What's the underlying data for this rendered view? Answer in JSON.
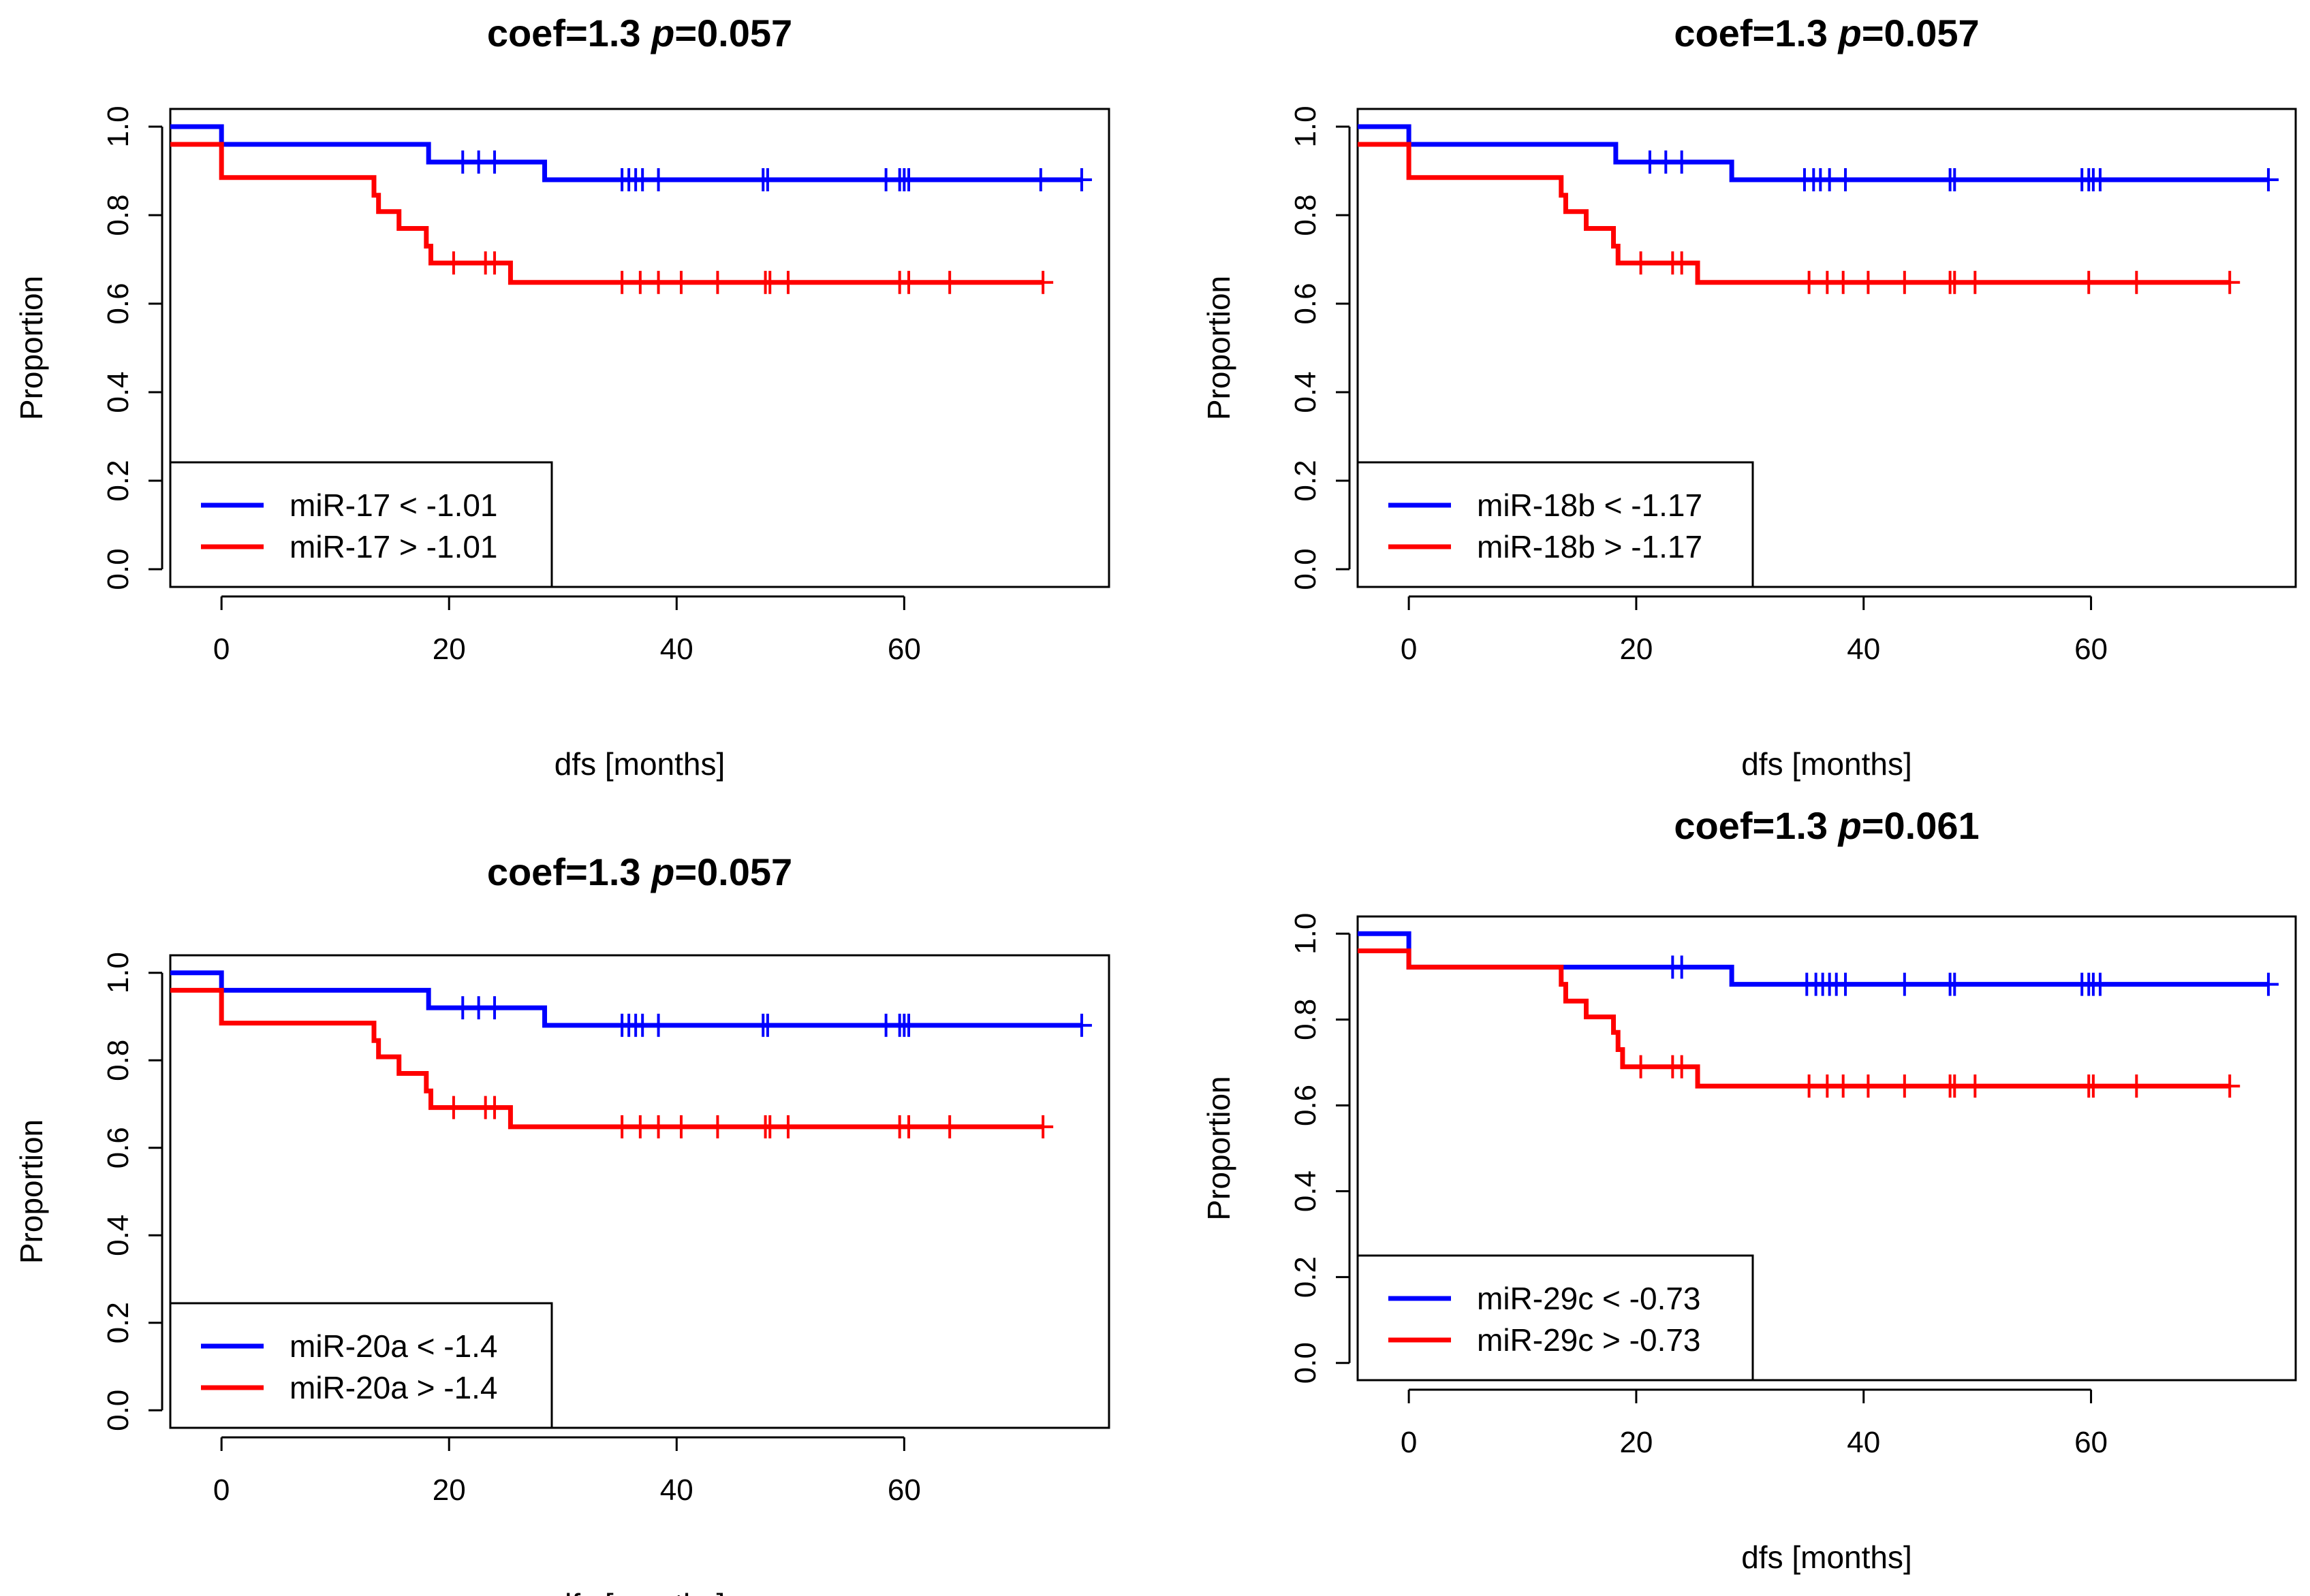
{
  "chart_data": [
    {
      "type": "line",
      "subtype": "kaplan-meier",
      "title": {
        "coef": "coef=1.3",
        "p_label": "p",
        "p_value": "=0.057"
      },
      "xlabel": "dfs [months]",
      "ylabel": "Proportion",
      "xlim": [
        -4.5,
        78
      ],
      "ylim": [
        -0.04,
        1.04
      ],
      "x_ticks": [
        "0",
        "20",
        "40",
        "60"
      ],
      "y_ticks": [
        "0.0",
        "0.2",
        "0.4",
        "0.6",
        "0.8",
        "1.0"
      ],
      "legend_position": "bottom-left",
      "series": [
        {
          "name": "miR-17 < -1.01",
          "color": "#0000FF",
          "steps": [
            [
              -4.5,
              1.0
            ],
            [
              0,
              0.96
            ],
            [
              18.2,
              0.92
            ],
            [
              28.4,
              0.88
            ],
            [
              75.6,
              0.88
            ]
          ],
          "censor_times": [
            21.2,
            22.6,
            24.0,
            35.2,
            35.8,
            36.4,
            37.0,
            38.4,
            47.6,
            48.0,
            58.4,
            59.6,
            60.0,
            60.4,
            72.0,
            75.6
          ]
        },
        {
          "name": "miR-17 > -1.01",
          "color": "#FF0000",
          "steps": [
            [
              -4.5,
              0.96
            ],
            [
              0,
              0.885
            ],
            [
              13.4,
              0.845
            ],
            [
              13.8,
              0.808
            ],
            [
              15.6,
              0.77
            ],
            [
              18.0,
              0.73
            ],
            [
              18.4,
              0.692
            ],
            [
              25.4,
              0.648
            ],
            [
              72.2,
              0.648
            ]
          ],
          "censor_times": [
            20.4,
            23.2,
            24.0,
            35.2,
            36.8,
            38.4,
            40.4,
            43.6,
            47.8,
            48.2,
            49.8,
            59.6,
            60.4,
            64.0,
            72.2
          ]
        }
      ]
    },
    {
      "type": "line",
      "subtype": "kaplan-meier",
      "title": {
        "coef": "coef=1.3",
        "p_label": "p",
        "p_value": "=0.057"
      },
      "xlabel": "dfs [months]",
      "ylabel": "Proportion",
      "xlim": [
        -4.5,
        78
      ],
      "ylim": [
        -0.04,
        1.04
      ],
      "x_ticks": [
        "0",
        "20",
        "40",
        "60"
      ],
      "y_ticks": [
        "0.0",
        "0.2",
        "0.4",
        "0.6",
        "0.8",
        "1.0"
      ],
      "legend_position": "bottom-left",
      "series": [
        {
          "name": "miR-18b < -1.17",
          "color": "#0000FF",
          "steps": [
            [
              -4.5,
              1.0
            ],
            [
              0,
              0.96
            ],
            [
              18.2,
              0.92
            ],
            [
              28.4,
              0.88
            ],
            [
              75.6,
              0.88
            ]
          ],
          "censor_times": [
            21.2,
            22.6,
            24.0,
            34.8,
            35.6,
            36.2,
            37.0,
            38.4,
            47.6,
            48.0,
            59.2,
            59.8,
            60.2,
            60.8,
            75.6
          ]
        },
        {
          "name": "miR-18b > -1.17",
          "color": "#FF0000",
          "steps": [
            [
              -4.5,
              0.96
            ],
            [
              0,
              0.885
            ],
            [
              13.4,
              0.845
            ],
            [
              13.8,
              0.808
            ],
            [
              15.6,
              0.77
            ],
            [
              18.0,
              0.73
            ],
            [
              18.4,
              0.692
            ],
            [
              25.4,
              0.648
            ],
            [
              72.2,
              0.648
            ]
          ],
          "censor_times": [
            20.4,
            23.2,
            24.0,
            35.2,
            36.8,
            38.2,
            40.4,
            43.6,
            47.6,
            48.0,
            49.8,
            59.8,
            64.0,
            72.2
          ]
        }
      ]
    },
    {
      "type": "line",
      "subtype": "kaplan-meier",
      "title": {
        "coef": "coef=1.3",
        "p_label": "p",
        "p_value": "=0.057"
      },
      "xlabel": "dfs [months]",
      "ylabel": "Proportion",
      "xlim": [
        -4.5,
        78
      ],
      "ylim": [
        -0.04,
        1.04
      ],
      "x_ticks": [
        "0",
        "20",
        "40",
        "60"
      ],
      "y_ticks": [
        "0.0",
        "0.2",
        "0.4",
        "0.6",
        "0.8",
        "1.0"
      ],
      "legend_position": "bottom-left",
      "series": [
        {
          "name": "miR-20a < -1.4",
          "color": "#0000FF",
          "steps": [
            [
              -4.5,
              1.0
            ],
            [
              0,
              0.96
            ],
            [
              18.2,
              0.92
            ],
            [
              28.4,
              0.88
            ],
            [
              75.6,
              0.88
            ]
          ],
          "censor_times": [
            21.2,
            22.6,
            24.0,
            35.2,
            35.8,
            36.4,
            37.0,
            38.4,
            47.6,
            48.0,
            58.4,
            59.6,
            60.0,
            60.4,
            75.6
          ]
        },
        {
          "name": "miR-20a > -1.4",
          "color": "#FF0000",
          "steps": [
            [
              -4.5,
              0.96
            ],
            [
              0,
              0.885
            ],
            [
              13.4,
              0.845
            ],
            [
              13.8,
              0.808
            ],
            [
              15.6,
              0.77
            ],
            [
              18.0,
              0.73
            ],
            [
              18.4,
              0.692
            ],
            [
              25.4,
              0.648
            ],
            [
              72.2,
              0.648
            ]
          ],
          "censor_times": [
            20.4,
            23.2,
            24.0,
            35.2,
            36.8,
            38.4,
            40.4,
            43.6,
            47.8,
            48.2,
            49.8,
            59.6,
            60.4,
            64.0,
            72.2
          ]
        }
      ]
    },
    {
      "type": "line",
      "subtype": "kaplan-meier",
      "title": {
        "coef": "coef=1.3",
        "p_label": "p",
        "p_value": "=0.061"
      },
      "xlabel": "dfs [months]",
      "ylabel": "Proportion",
      "xlim": [
        -4.5,
        78
      ],
      "ylim": [
        -0.04,
        1.04
      ],
      "x_ticks": [
        "0",
        "20",
        "40",
        "60"
      ],
      "y_ticks": [
        "0.0",
        "0.2",
        "0.4",
        "0.6",
        "0.8",
        "1.0"
      ],
      "legend_position": "bottom-left",
      "series": [
        {
          "name": "miR-29c < -0.73",
          "color": "#0000FF",
          "steps": [
            [
              -4.5,
              1.0
            ],
            [
              0,
              0.922
            ],
            [
              28.4,
              0.882
            ],
            [
              75.6,
              0.882
            ]
          ],
          "censor_times": [
            23.2,
            24.0,
            35.0,
            35.8,
            36.4,
            37.0,
            37.6,
            38.4,
            43.6,
            47.6,
            48.0,
            59.2,
            59.8,
            60.2,
            60.8,
            75.6
          ]
        },
        {
          "name": "miR-29c > -0.73",
          "color": "#FF0000",
          "steps": [
            [
              -4.5,
              0.96
            ],
            [
              0,
              0.922
            ],
            [
              13.4,
              0.882
            ],
            [
              13.8,
              0.843
            ],
            [
              15.6,
              0.806
            ],
            [
              18.0,
              0.77
            ],
            [
              18.4,
              0.73
            ],
            [
              18.8,
              0.69
            ],
            [
              25.4,
              0.645
            ],
            [
              72.2,
              0.645
            ]
          ],
          "censor_times": [
            20.4,
            23.2,
            24.0,
            35.2,
            36.8,
            38.2,
            40.4,
            43.6,
            47.6,
            48.0,
            49.8,
            59.8,
            60.2,
            64.0,
            72.2
          ]
        }
      ]
    }
  ]
}
